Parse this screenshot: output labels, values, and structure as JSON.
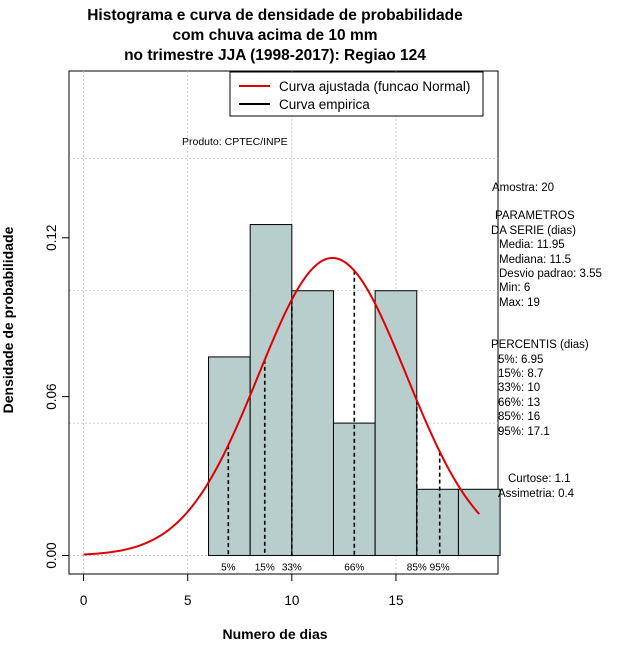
{
  "title_lines": [
    "Histograma e curva de densidade de probabilidade",
    "com chuva acima de 10 mm",
    "no trimestre JJA (1998-2017): Regiao 124"
  ],
  "legend": {
    "fitted": "Curva ajustada (funcao Normal)",
    "empirical": "Curva empirica"
  },
  "produto": "Produto: CPTEC/INPE",
  "colors": {
    "bar_fill": "#b7cecd",
    "fitted_curve": "#e00000",
    "grid": "#bdbdbd"
  },
  "stats": {
    "amostra": "Amostra: 20",
    "params_header": "PARAMETROS",
    "params_sub": "DA SERIE (dias)",
    "media": "Media: 11.95",
    "mediana": "Mediana: 11.5",
    "desvio": "Desvio padrao: 3.55",
    "min": "Min: 6",
    "max": "Max: 19",
    "percentis_header": "PERCENTIS (dias)",
    "p5": "5%: 6.95",
    "p15": "15%: 8.7",
    "p33": "33%: 10",
    "p66": "66%: 13",
    "p85": "85%: 16",
    "p95": "95%: 17.1",
    "curtose": "Curtose: 1.1",
    "assimetria": "Assimetria: 0.4"
  },
  "chart_data": {
    "type": "bar",
    "title": "Histograma e curva de densidade de probabilidade com chuva acima de 10 mm no trimestre JJA (1998-2017): Regiao 124",
    "xlabel": "Numero de dias",
    "ylabel": "Densidade de probabilidade",
    "xlim": [
      -0.7,
      19.9
    ],
    "ylim": [
      -0.007,
      0.183
    ],
    "xticks": [
      0,
      5,
      10,
      15
    ],
    "yticks": [
      0.0,
      0.06,
      0.12
    ],
    "ytick_labels": [
      "0.00",
      "0.06",
      "0.12"
    ],
    "grid": true,
    "bins": [
      {
        "x0": 6,
        "x1": 8,
        "density": 0.075
      },
      {
        "x0": 8,
        "x1": 10,
        "density": 0.125
      },
      {
        "x0": 10,
        "x1": 12,
        "density": 0.1
      },
      {
        "x0": 12,
        "x1": 14,
        "density": 0.05
      },
      {
        "x0": 14,
        "x1": 16,
        "density": 0.1
      },
      {
        "x0": 16,
        "x1": 18,
        "density": 0.025
      },
      {
        "x0": 18,
        "x1": 20,
        "density": 0.025
      }
    ],
    "fitted_normal": {
      "name": "Curva ajustada (funcao Normal)",
      "mean": 11.95,
      "sd": 3.55,
      "x_from": 0,
      "x_to": 19
    },
    "percentiles": [
      {
        "label": "5%",
        "x": 6.95
      },
      {
        "label": "15%",
        "x": 8.7
      },
      {
        "label": "33%",
        "x": 10
      },
      {
        "label": "66%",
        "x": 13
      },
      {
        "label": "85%",
        "x": 16
      },
      {
        "label": "95%",
        "x": 17.1
      }
    ]
  }
}
